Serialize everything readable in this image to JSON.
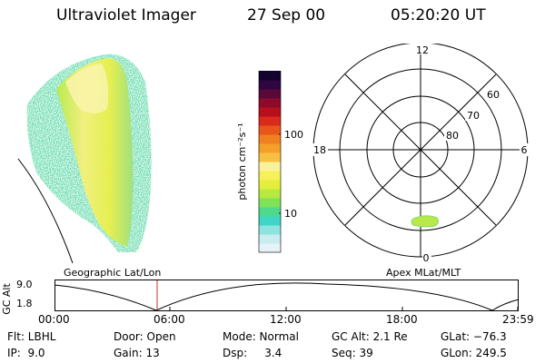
{
  "header": {
    "title": "Ultraviolet Imager",
    "date": "27 Sep 00",
    "time": "05:20:20 UT"
  },
  "colorbar": {
    "unit_label": "photon cm⁻²s⁻¹",
    "tick_100": "100",
    "tick_10": "10",
    "colors": [
      "#e6f2f7",
      "#c8ecef",
      "#8fe3df",
      "#3fd6c8",
      "#4fd98b",
      "#7fe35a",
      "#b7ea3f",
      "#e3ef3c",
      "#f6f05a",
      "#f9f29a",
      "#f7c043",
      "#f59f2b",
      "#f08020",
      "#e8561b",
      "#d92a1c",
      "#b80f1d",
      "#8e0a2a",
      "#5a0838",
      "#2e0640",
      "#12032f"
    ]
  },
  "polar_plot": {
    "mlt_12": "12",
    "mlt_18": "18",
    "mlt_6": "6",
    "mlt_0": "0",
    "lat_60": "60",
    "lat_70": "70",
    "lat_80": "80"
  },
  "panels": {
    "left_caption": "Geographic Lat/Lon",
    "right_caption": "Apex MLat/MLT"
  },
  "orbit_plot": {
    "ylabel": "GC Alt",
    "y_top": "9.0",
    "y_bottom": "1.8",
    "x_ticks": [
      "00:00",
      "06:00",
      "12:00",
      "18:00",
      "23:59"
    ],
    "marker_color": "#c0392b"
  },
  "status": {
    "flt": "Flt: LBHL",
    "door": "Door: Open",
    "mode": "Mode: Normal",
    "gc_alt": "GC Alt: 2.1 Re",
    "glat": "GLat: −76.3",
    "ip": "IP:  9.0",
    "gain": "Gain: 13",
    "dsp": "Dsp:     3.4",
    "seq": "Seq: 39",
    "glon": "GLon: 249.5"
  }
}
